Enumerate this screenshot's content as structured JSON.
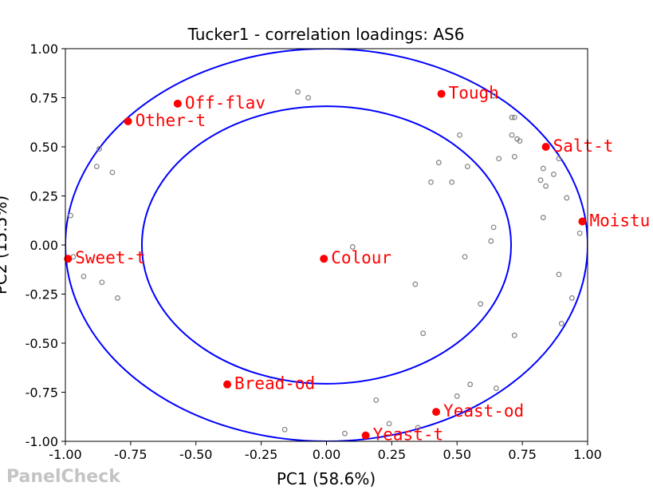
{
  "chart_data": {
    "type": "scatter",
    "title": "Tucker1 - correlation loadings: AS6",
    "xlabel": "PC1 (58.6%)",
    "ylabel": "PC2 (15.5%)",
    "xlim": [
      -1.0,
      1.0
    ],
    "ylim": [
      -1.0,
      1.0
    ],
    "xticks": [
      "-1.00",
      "-0.75",
      "-0.50",
      "-0.25",
      "0.00",
      "0.25",
      "0.50",
      "0.75",
      "1.00"
    ],
    "yticks": [
      "-1.00",
      "-0.75",
      "-0.50",
      "-0.25",
      "0.00",
      "0.25",
      "0.50",
      "0.75",
      "1.00"
    ],
    "circles": [
      {
        "name": "outer",
        "radius": 1.0,
        "color": "#0000ff"
      },
      {
        "name": "inner",
        "radius": 0.707,
        "color": "#0000ff"
      }
    ],
    "attributes": {
      "color": "#ff0000",
      "points": [
        {
          "label": "Off-flav",
          "x": -0.57,
          "y": 0.72
        },
        {
          "label": "Other-t",
          "x": -0.76,
          "y": 0.63
        },
        {
          "label": "Tough",
          "x": 0.44,
          "y": 0.77
        },
        {
          "label": "Salt-t",
          "x": 0.84,
          "y": 0.5
        },
        {
          "label": "Moistu",
          "x": 0.98,
          "y": 0.12
        },
        {
          "label": "Sweet-t",
          "x": -0.99,
          "y": -0.07
        },
        {
          "label": "Colour",
          "x": -0.01,
          "y": -0.07
        },
        {
          "label": "Bread-od",
          "x": -0.38,
          "y": -0.71
        },
        {
          "label": "Yeast-od",
          "x": 0.42,
          "y": -0.85
        },
        {
          "label": "Yeast-t",
          "x": 0.15,
          "y": -0.97
        }
      ]
    },
    "assessors": {
      "color": "#808080",
      "points": [
        [
          -0.11,
          0.78
        ],
        [
          -0.07,
          0.75
        ],
        [
          0.51,
          0.56
        ],
        [
          0.64,
          0.76
        ],
        [
          0.71,
          0.65
        ],
        [
          0.72,
          0.65
        ],
        [
          0.71,
          0.56
        ],
        [
          0.73,
          0.54
        ],
        [
          0.74,
          0.53
        ],
        [
          0.72,
          0.45
        ],
        [
          0.66,
          0.44
        ],
        [
          0.43,
          0.42
        ],
        [
          0.54,
          0.4
        ],
        [
          0.4,
          0.32
        ],
        [
          0.48,
          0.32
        ],
        [
          0.82,
          0.33
        ],
        [
          0.83,
          0.39
        ],
        [
          0.87,
          0.36
        ],
        [
          0.84,
          0.3
        ],
        [
          0.89,
          0.44
        ],
        [
          0.92,
          0.24
        ],
        [
          0.83,
          0.14
        ],
        [
          0.64,
          0.09
        ],
        [
          0.63,
          0.02
        ],
        [
          0.97,
          0.06
        ],
        [
          0.53,
          -0.06
        ],
        [
          0.1,
          -0.01
        ],
        [
          -0.98,
          0.15
        ],
        [
          -0.87,
          0.49
        ],
        [
          -0.88,
          0.4
        ],
        [
          -0.82,
          0.37
        ],
        [
          -0.97,
          -0.06
        ],
        [
          -0.93,
          -0.16
        ],
        [
          -0.86,
          -0.19
        ],
        [
          -0.8,
          -0.27
        ],
        [
          0.34,
          -0.2
        ],
        [
          0.59,
          -0.3
        ],
        [
          0.89,
          -0.15
        ],
        [
          0.94,
          -0.27
        ],
        [
          0.37,
          -0.45
        ],
        [
          0.72,
          -0.46
        ],
        [
          0.9,
          -0.4
        ],
        [
          0.65,
          -0.73
        ],
        [
          0.55,
          -0.71
        ],
        [
          0.5,
          -0.77
        ],
        [
          0.19,
          -0.79
        ],
        [
          0.24,
          -0.91
        ],
        [
          0.35,
          -0.93
        ],
        [
          0.07,
          -0.96
        ],
        [
          -0.16,
          -0.94
        ]
      ]
    }
  },
  "watermark": "PanelCheck"
}
